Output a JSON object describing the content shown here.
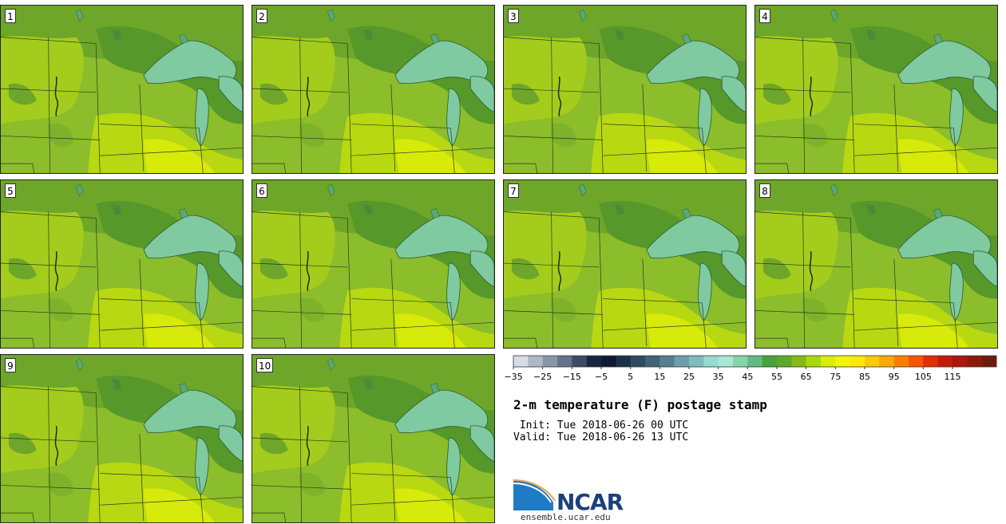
{
  "panels": [
    {
      "label": "1"
    },
    {
      "label": "2"
    },
    {
      "label": "3"
    },
    {
      "label": "4"
    },
    {
      "label": "5"
    },
    {
      "label": "6"
    },
    {
      "label": "7"
    },
    {
      "label": "8"
    },
    {
      "label": "9"
    },
    {
      "label": "10"
    }
  ],
  "colorbar": {
    "colors": [
      "#d7dde5",
      "#b0b8c4",
      "#8a96a6",
      "#66728a",
      "#3e4a66",
      "#1a2640",
      "#0e1a30",
      "#1c3048",
      "#2d4a60",
      "#3f6478",
      "#557f90",
      "#6b9ea8",
      "#7fbcbc",
      "#95dcd0",
      "#a8e8d6",
      "#86d4a8",
      "#62bb82",
      "#48a23e",
      "#5ea82a",
      "#84ba1c",
      "#aad80e",
      "#d6ee0a",
      "#f2f40a",
      "#fde80c",
      "#fdc80a",
      "#fba808",
      "#f87e06",
      "#f25604",
      "#de3004",
      "#c01c08",
      "#a8180c",
      "#8c1a0c",
      "#701a0e"
    ],
    "ticks": [
      "−35",
      "−25",
      "−15",
      "−5",
      "5",
      "15",
      "25",
      "35",
      "45",
      "55",
      "65",
      "75",
      "85",
      "95",
      "105",
      "115"
    ]
  },
  "title": "2-m temperature (F) postage stamp",
  "init_line": " Init: Tue 2018-06-26 00 UTC",
  "valid_line": "Valid: Tue 2018-06-26 13 UTC",
  "logo": {
    "word": "NCAR",
    "url": "ensemble.ucar.edu"
  }
}
